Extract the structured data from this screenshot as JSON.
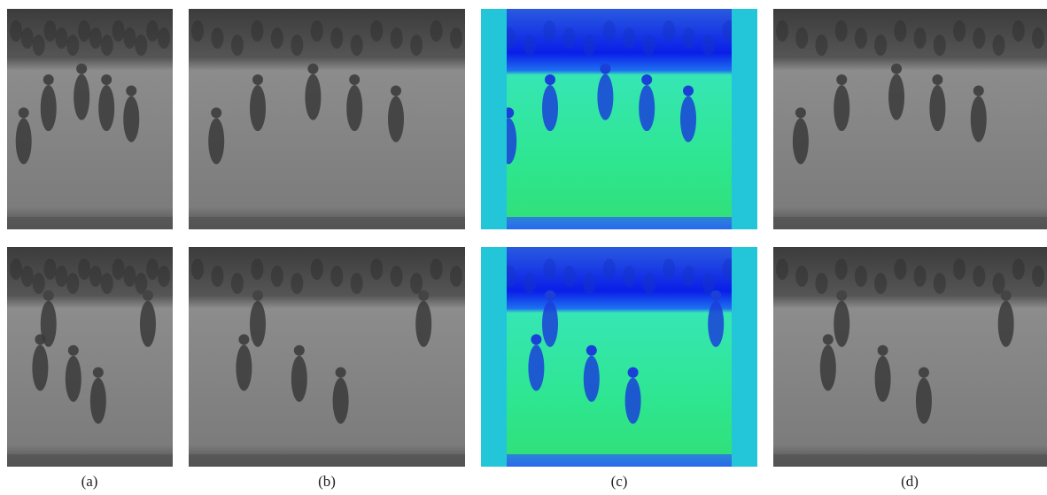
{
  "labels": [
    "(a)",
    "(b)",
    "(c)",
    "(d)"
  ]
}
